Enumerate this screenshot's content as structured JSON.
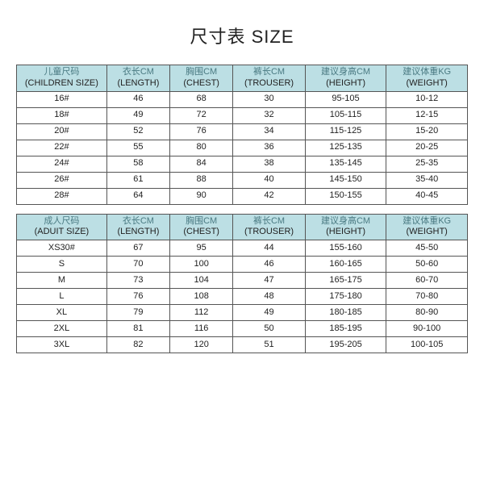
{
  "title": "尺寸表 SIZE",
  "header_bg": "#bcdfe4",
  "border_color": "#555555",
  "text_color": "#222222",
  "zh_color": "#4a7a82",
  "children_table": {
    "columns": [
      {
        "zh": "儿童尺码",
        "en": "(CHILDREN SIZE)"
      },
      {
        "zh": "衣长CM",
        "en": "(LENGTH)"
      },
      {
        "zh": "胸围CM",
        "en": "(CHEST)"
      },
      {
        "zh": "裤长CM",
        "en": "(TROUSER)"
      },
      {
        "zh": "建议身高CM",
        "en": "(HEIGHT)"
      },
      {
        "zh": "建议体重KG",
        "en": "(WEIGHT)"
      }
    ],
    "rows": [
      [
        "16#",
        "46",
        "68",
        "30",
        "95-105",
        "10-12"
      ],
      [
        "18#",
        "49",
        "72",
        "32",
        "105-115",
        "12-15"
      ],
      [
        "20#",
        "52",
        "76",
        "34",
        "115-125",
        "15-20"
      ],
      [
        "22#",
        "55",
        "80",
        "36",
        "125-135",
        "20-25"
      ],
      [
        "24#",
        "58",
        "84",
        "38",
        "135-145",
        "25-35"
      ],
      [
        "26#",
        "61",
        "88",
        "40",
        "145-150",
        "35-40"
      ],
      [
        "28#",
        "64",
        "90",
        "42",
        "150-155",
        "40-45"
      ]
    ]
  },
  "adult_table": {
    "columns": [
      {
        "zh": "成人尺码",
        "en": "(ADUIT SIZE)"
      },
      {
        "zh": "衣长CM",
        "en": "(LENGTH)"
      },
      {
        "zh": "胸围CM",
        "en": "(CHEST)"
      },
      {
        "zh": "裤长CM",
        "en": "(TROUSER)"
      },
      {
        "zh": "建议身高CM",
        "en": "(HEIGHT)"
      },
      {
        "zh": "建议体重KG",
        "en": "(WEIGHT)"
      }
    ],
    "rows": [
      [
        "XS30#",
        "67",
        "95",
        "44",
        "155-160",
        "45-50"
      ],
      [
        "S",
        "70",
        "100",
        "46",
        "160-165",
        "50-60"
      ],
      [
        "M",
        "73",
        "104",
        "47",
        "165-175",
        "60-70"
      ],
      [
        "L",
        "76",
        "108",
        "48",
        "175-180",
        "70-80"
      ],
      [
        "XL",
        "79",
        "112",
        "49",
        "180-185",
        "80-90"
      ],
      [
        "2XL",
        "81",
        "116",
        "50",
        "185-195",
        "90-100"
      ],
      [
        "3XL",
        "82",
        "120",
        "51",
        "195-205",
        "100-105"
      ]
    ]
  }
}
